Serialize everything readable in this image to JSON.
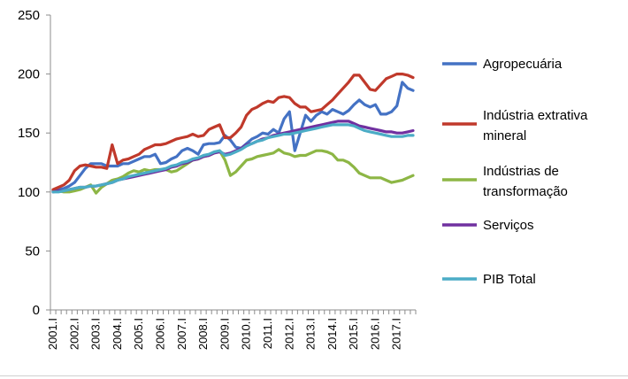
{
  "chart_data": {
    "type": "line",
    "title": "",
    "xlabel": "",
    "ylabel": "",
    "ylim": [
      0,
      250
    ],
    "yticks": [
      0,
      50,
      100,
      150,
      200,
      250
    ],
    "grid": false,
    "legend_position": "right",
    "x_tick_labels": [
      "2001.I",
      "2002.I",
      "2003.I",
      "2004.I",
      "2005.I",
      "2006.I",
      "2007.I",
      "2008.I",
      "2009.I",
      "2010.I",
      "2011.I",
      "2012.I",
      "2013.I",
      "2014.I",
      "2015.I",
      "2016.I",
      "2017.I"
    ],
    "series": [
      {
        "name": "Agropecuária",
        "legend_lines": [
          "Agropecuária"
        ],
        "color": "#4472C4",
        "values": [
          101,
          102,
          103,
          105,
          108,
          114,
          120,
          124,
          124,
          124,
          122,
          122,
          122,
          124,
          124,
          126,
          128,
          130,
          130,
          132,
          124,
          125,
          128,
          130,
          135,
          137,
          135,
          132,
          140,
          141,
          141,
          142,
          148,
          144,
          138,
          137,
          141,
          145,
          147,
          150,
          149,
          153,
          150,
          162,
          168,
          135,
          150,
          165,
          160,
          165,
          168,
          166,
          170,
          168,
          166,
          169,
          174,
          178,
          174,
          172,
          174,
          166,
          166,
          168,
          173,
          193,
          188,
          186
        ]
      },
      {
        "name": "Indústria extrativa mineral",
        "legend_lines": [
          "Indústria extrativa",
          "mineral"
        ],
        "color": "#C0392B",
        "values": [
          102,
          104,
          106,
          110,
          118,
          122,
          123,
          122,
          121,
          121,
          120,
          140,
          124,
          127,
          128,
          130,
          132,
          136,
          138,
          140,
          140,
          141,
          143,
          145,
          146,
          147,
          149,
          147,
          148,
          153,
          155,
          157,
          146,
          146,
          150,
          155,
          165,
          170,
          172,
          175,
          177,
          176,
          180,
          181,
          180,
          175,
          172,
          172,
          168,
          169,
          170,
          174,
          178,
          183,
          188,
          193,
          199,
          199,
          193,
          187,
          186,
          191,
          196,
          198,
          200,
          200,
          199,
          197
        ]
      },
      {
        "name": "Indústrias de transformação",
        "legend_lines": [
          "Indústrias de",
          "transformação"
        ],
        "color": "#8DB645",
        "values": [
          101,
          101,
          100,
          100,
          101,
          102,
          104,
          106,
          99,
          104,
          107,
          110,
          111,
          113,
          116,
          118,
          117,
          119,
          118,
          119,
          119,
          119,
          117,
          118,
          121,
          124,
          127,
          128,
          130,
          131,
          133,
          135,
          127,
          114,
          117,
          122,
          127,
          128,
          130,
          131,
          132,
          133,
          136,
          133,
          132,
          130,
          131,
          131,
          133,
          135,
          135,
          134,
          132,
          127,
          127,
          125,
          121,
          116,
          114,
          112,
          112,
          112,
          110,
          108,
          109,
          110,
          112,
          114
        ]
      },
      {
        "name": "Serviços",
        "legend_lines": [
          "Serviços"
        ],
        "color": "#7030A0",
        "values": [
          100,
          101,
          101,
          102,
          103,
          104,
          104,
          105,
          105,
          106,
          107,
          108,
          110,
          111,
          112,
          113,
          114,
          115,
          116,
          117,
          118,
          119,
          121,
          122,
          124,
          125,
          127,
          128,
          130,
          131,
          133,
          134,
          132,
          133,
          135,
          137,
          140,
          141,
          143,
          145,
          146,
          148,
          149,
          150,
          151,
          152,
          153,
          154,
          155,
          156,
          157,
          158,
          159,
          160,
          160,
          160,
          158,
          156,
          155,
          154,
          153,
          152,
          151,
          151,
          150,
          150,
          151,
          152
        ]
      },
      {
        "name": "PIB Total",
        "legend_lines": [
          "PIB Total"
        ],
        "color": "#4BACC6",
        "values": [
          100,
          100,
          101,
          102,
          103,
          104,
          104,
          105,
          105,
          106,
          107,
          108,
          110,
          111,
          113,
          114,
          115,
          116,
          117,
          118,
          119,
          120,
          122,
          123,
          125,
          126,
          128,
          129,
          131,
          132,
          134,
          135,
          131,
          132,
          134,
          136,
          139,
          141,
          143,
          144,
          146,
          147,
          148,
          149,
          149,
          150,
          151,
          152,
          153,
          154,
          155,
          156,
          157,
          157,
          157,
          157,
          156,
          154,
          152,
          151,
          150,
          149,
          148,
          147,
          147,
          147,
          148,
          148
        ]
      }
    ]
  }
}
